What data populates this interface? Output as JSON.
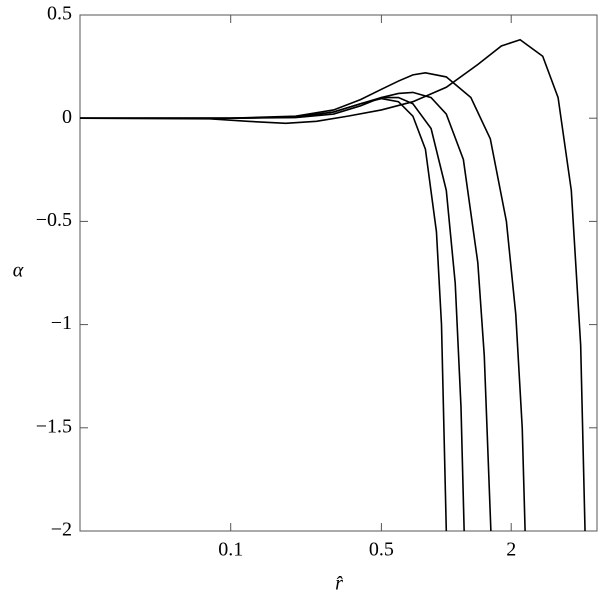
{
  "chart_data": {
    "type": "line",
    "xscale": "log",
    "xlabel": "r̂",
    "ylabel": "α",
    "xlim": [
      0.02,
      5
    ],
    "ylim": [
      -2,
      0.5
    ],
    "xticks": [
      0.1,
      0.5,
      2
    ],
    "yticks": [
      0.5,
      0,
      {
        "value": -0.5,
        "label": "−0.5"
      },
      {
        "value": -1,
        "label": "−1"
      },
      {
        "value": -1.5,
        "label": "−1.5"
      },
      {
        "value": -2,
        "label": "−2"
      }
    ],
    "series": [
      {
        "color": "#000000",
        "x": [
          0.02,
          0.1,
          0.2,
          0.3,
          0.4,
          0.5,
          0.6,
          0.7,
          0.8,
          0.9,
          0.95,
          1.0
        ],
        "values": [
          0,
          0,
          0.005,
          0.03,
          0.07,
          0.095,
          0.08,
          0.01,
          -0.15,
          -0.55,
          -1.0,
          -2
        ]
      },
      {
        "color": "#000000",
        "x": [
          0.02,
          0.1,
          0.2,
          0.3,
          0.4,
          0.5,
          0.6,
          0.7,
          0.85,
          1.0,
          1.1,
          1.17,
          1.21
        ],
        "values": [
          0,
          0,
          0.005,
          0.03,
          0.07,
          0.1,
          0.1,
          0.07,
          -0.05,
          -0.35,
          -0.8,
          -1.4,
          -2
        ]
      },
      {
        "color": "#000000",
        "x": [
          0.02,
          0.1,
          0.2,
          0.3,
          0.4,
          0.5,
          0.6,
          0.7,
          0.85,
          1.0,
          1.2,
          1.4,
          1.5,
          1.61
        ],
        "values": [
          0,
          0,
          0.003,
          0.02,
          0.06,
          0.1,
          0.12,
          0.125,
          0.1,
          0.02,
          -0.2,
          -0.7,
          -1.15,
          -2
        ]
      },
      {
        "color": "#000000",
        "x": [
          0.02,
          0.1,
          0.2,
          0.3,
          0.4,
          0.5,
          0.6,
          0.7,
          0.8,
          1.0,
          1.3,
          1.6,
          1.9,
          2.1,
          2.25,
          2.32
        ],
        "values": [
          0,
          0,
          0.01,
          0.04,
          0.09,
          0.14,
          0.18,
          0.21,
          0.22,
          0.2,
          0.1,
          -0.1,
          -0.5,
          -0.95,
          -1.5,
          -2
        ]
      },
      {
        "color": "#000000",
        "x": [
          0.02,
          0.08,
          0.12,
          0.18,
          0.25,
          0.35,
          0.5,
          0.7,
          1.0,
          1.4,
          1.8,
          2.2,
          2.8,
          3.3,
          3.8,
          4.2,
          4.4
        ],
        "values": [
          0,
          -0.003,
          -0.015,
          -0.025,
          -0.015,
          0.01,
          0.04,
          0.08,
          0.15,
          0.26,
          0.35,
          0.38,
          0.3,
          0.1,
          -0.35,
          -1.1,
          -2
        ]
      }
    ]
  }
}
